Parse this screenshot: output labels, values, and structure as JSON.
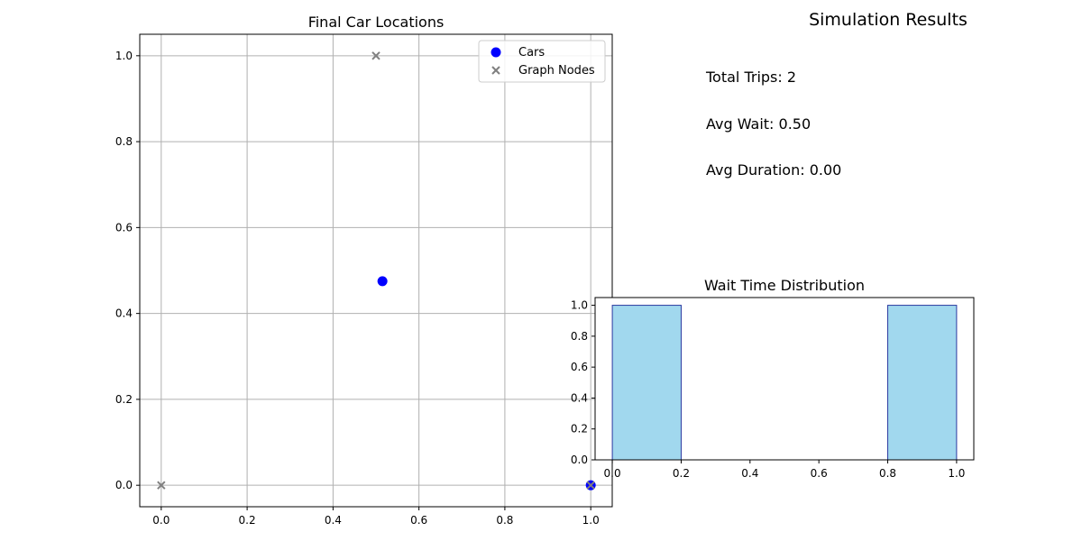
{
  "summary": {
    "title": "Simulation Results",
    "stats": [
      "Total Trips: 2",
      "Avg Wait: 0.50",
      "Avg Duration: 0.00"
    ]
  },
  "chart_data": [
    {
      "type": "scatter",
      "title": "Final Car Locations",
      "xlabel": "",
      "ylabel": "",
      "xlim": [
        -0.05,
        1.05
      ],
      "ylim": [
        -0.05,
        1.05
      ],
      "xticks": [
        "0.0",
        "0.2",
        "0.4",
        "0.6",
        "0.8",
        "1.0"
      ],
      "yticks": [
        "0.0",
        "0.2",
        "0.4",
        "0.6",
        "0.8",
        "1.0"
      ],
      "grid": true,
      "legend_position": "top-right",
      "series": [
        {
          "name": "Cars",
          "marker": "circle",
          "color": "#0000ff",
          "points": [
            [
              0.515,
              0.475
            ],
            [
              1.0,
              0.0
            ]
          ]
        },
        {
          "name": "Graph Nodes",
          "marker": "x",
          "color": "#808080",
          "points": [
            [
              0.0,
              0.0
            ],
            [
              0.5,
              1.0
            ],
            [
              1.0,
              0.0
            ]
          ]
        }
      ]
    },
    {
      "type": "bar",
      "title": "Wait Time Distribution",
      "xlabel": "",
      "ylabel": "",
      "xlim": [
        -0.05,
        1.05
      ],
      "ylim": [
        0,
        1.05
      ],
      "xticks": [
        "0.0",
        "0.2",
        "0.4",
        "0.6",
        "0.8",
        "1.0"
      ],
      "yticks": [
        "0.0",
        "0.2",
        "0.4",
        "0.6",
        "0.8",
        "1.0"
      ],
      "grid": false,
      "bin_edges": [
        0.0,
        0.2,
        0.4,
        0.6,
        0.8,
        1.0
      ],
      "counts": [
        1,
        0,
        0,
        0,
        1
      ],
      "bar_color": "#a1d8ee",
      "edge_color": "#2b3aa0"
    }
  ]
}
